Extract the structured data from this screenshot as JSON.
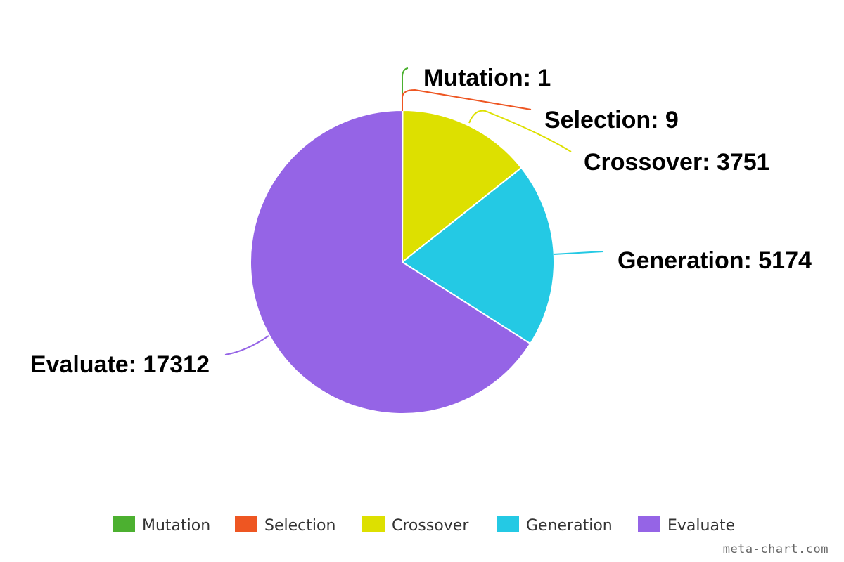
{
  "chart_data": {
    "type": "pie",
    "title": "",
    "categories": [
      "Mutation",
      "Selection",
      "Crossover",
      "Generation",
      "Evaluate"
    ],
    "values": [
      1,
      9,
      3751,
      5174,
      17312
    ],
    "colors": [
      "#4cb030",
      "#ee5622",
      "#dde000",
      "#24c9e4",
      "#9564e6"
    ],
    "data_labels": [
      "Mutation: 1",
      "Selection: 9",
      "Crossover: 3751",
      "Generation: 5174",
      "Evaluate: 17312"
    ],
    "legend": {
      "position": "bottom",
      "entries": [
        "Mutation",
        "Selection",
        "Crossover",
        "Generation",
        "Evaluate"
      ]
    },
    "start_angle": "12 o'clock",
    "direction": "clockwise"
  },
  "watermark": "meta-chart.com"
}
